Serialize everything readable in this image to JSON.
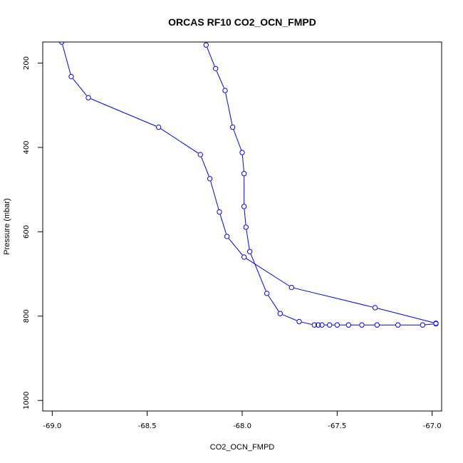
{
  "chart_data": {
    "type": "line",
    "title": "ORCAS RF10 CO2_OCN_FMPD",
    "xlabel": "CO2_OCN_FMPD",
    "ylabel": "Pressure (mbar)",
    "xlim": [
      -69.05,
      -66.95
    ],
    "ylim": [
      1025,
      150
    ],
    "y_inverted": true,
    "grid": false,
    "x_ticks": [
      -69.0,
      -68.5,
      -68.0,
      -67.5,
      -67.0
    ],
    "x_tick_labels": [
      "-69.0",
      "-68.5",
      "-68.0",
      "-67.5",
      "-67.0"
    ],
    "y_ticks": [
      200,
      400,
      600,
      800,
      1000
    ],
    "y_tick_labels": [
      "200",
      "400",
      "600",
      "800",
      "1000"
    ],
    "series_color": "#0000ff",
    "series": [
      {
        "marker": "open-circle",
        "points": [
          {
            "x": -68.95,
            "y": 150
          },
          {
            "x": -68.9,
            "y": 232
          },
          {
            "x": -68.81,
            "y": 282
          },
          {
            "x": -68.44,
            "y": 352
          },
          {
            "x": -68.22,
            "y": 417
          },
          {
            "x": -68.17,
            "y": 474
          },
          {
            "x": -68.12,
            "y": 553
          },
          {
            "x": -68.08,
            "y": 611
          },
          {
            "x": -67.99,
            "y": 660
          },
          {
            "x": -67.74,
            "y": 732
          },
          {
            "x": -67.3,
            "y": 780
          },
          {
            "x": -66.98,
            "y": 817
          }
        ]
      },
      {
        "marker": "open-circle",
        "points": [
          {
            "x": -68.19,
            "y": 157
          },
          {
            "x": -68.14,
            "y": 213
          },
          {
            "x": -68.09,
            "y": 265
          },
          {
            "x": -68.05,
            "y": 352
          },
          {
            "x": -68.0,
            "y": 412
          },
          {
            "x": -67.99,
            "y": 462
          },
          {
            "x": -67.99,
            "y": 540
          },
          {
            "x": -67.98,
            "y": 589
          },
          {
            "x": -67.96,
            "y": 647
          },
          {
            "x": -67.87,
            "y": 746
          },
          {
            "x": -67.8,
            "y": 794
          },
          {
            "x": -67.7,
            "y": 813
          },
          {
            "x": -67.62,
            "y": 821
          },
          {
            "x": -67.6,
            "y": 821
          },
          {
            "x": -67.58,
            "y": 821
          },
          {
            "x": -67.54,
            "y": 821
          },
          {
            "x": -67.5,
            "y": 821
          },
          {
            "x": -67.44,
            "y": 821
          },
          {
            "x": -67.37,
            "y": 821
          },
          {
            "x": -67.29,
            "y": 821
          },
          {
            "x": -67.18,
            "y": 821
          },
          {
            "x": -67.05,
            "y": 821
          },
          {
            "x": -66.98,
            "y": 818
          }
        ]
      }
    ]
  }
}
